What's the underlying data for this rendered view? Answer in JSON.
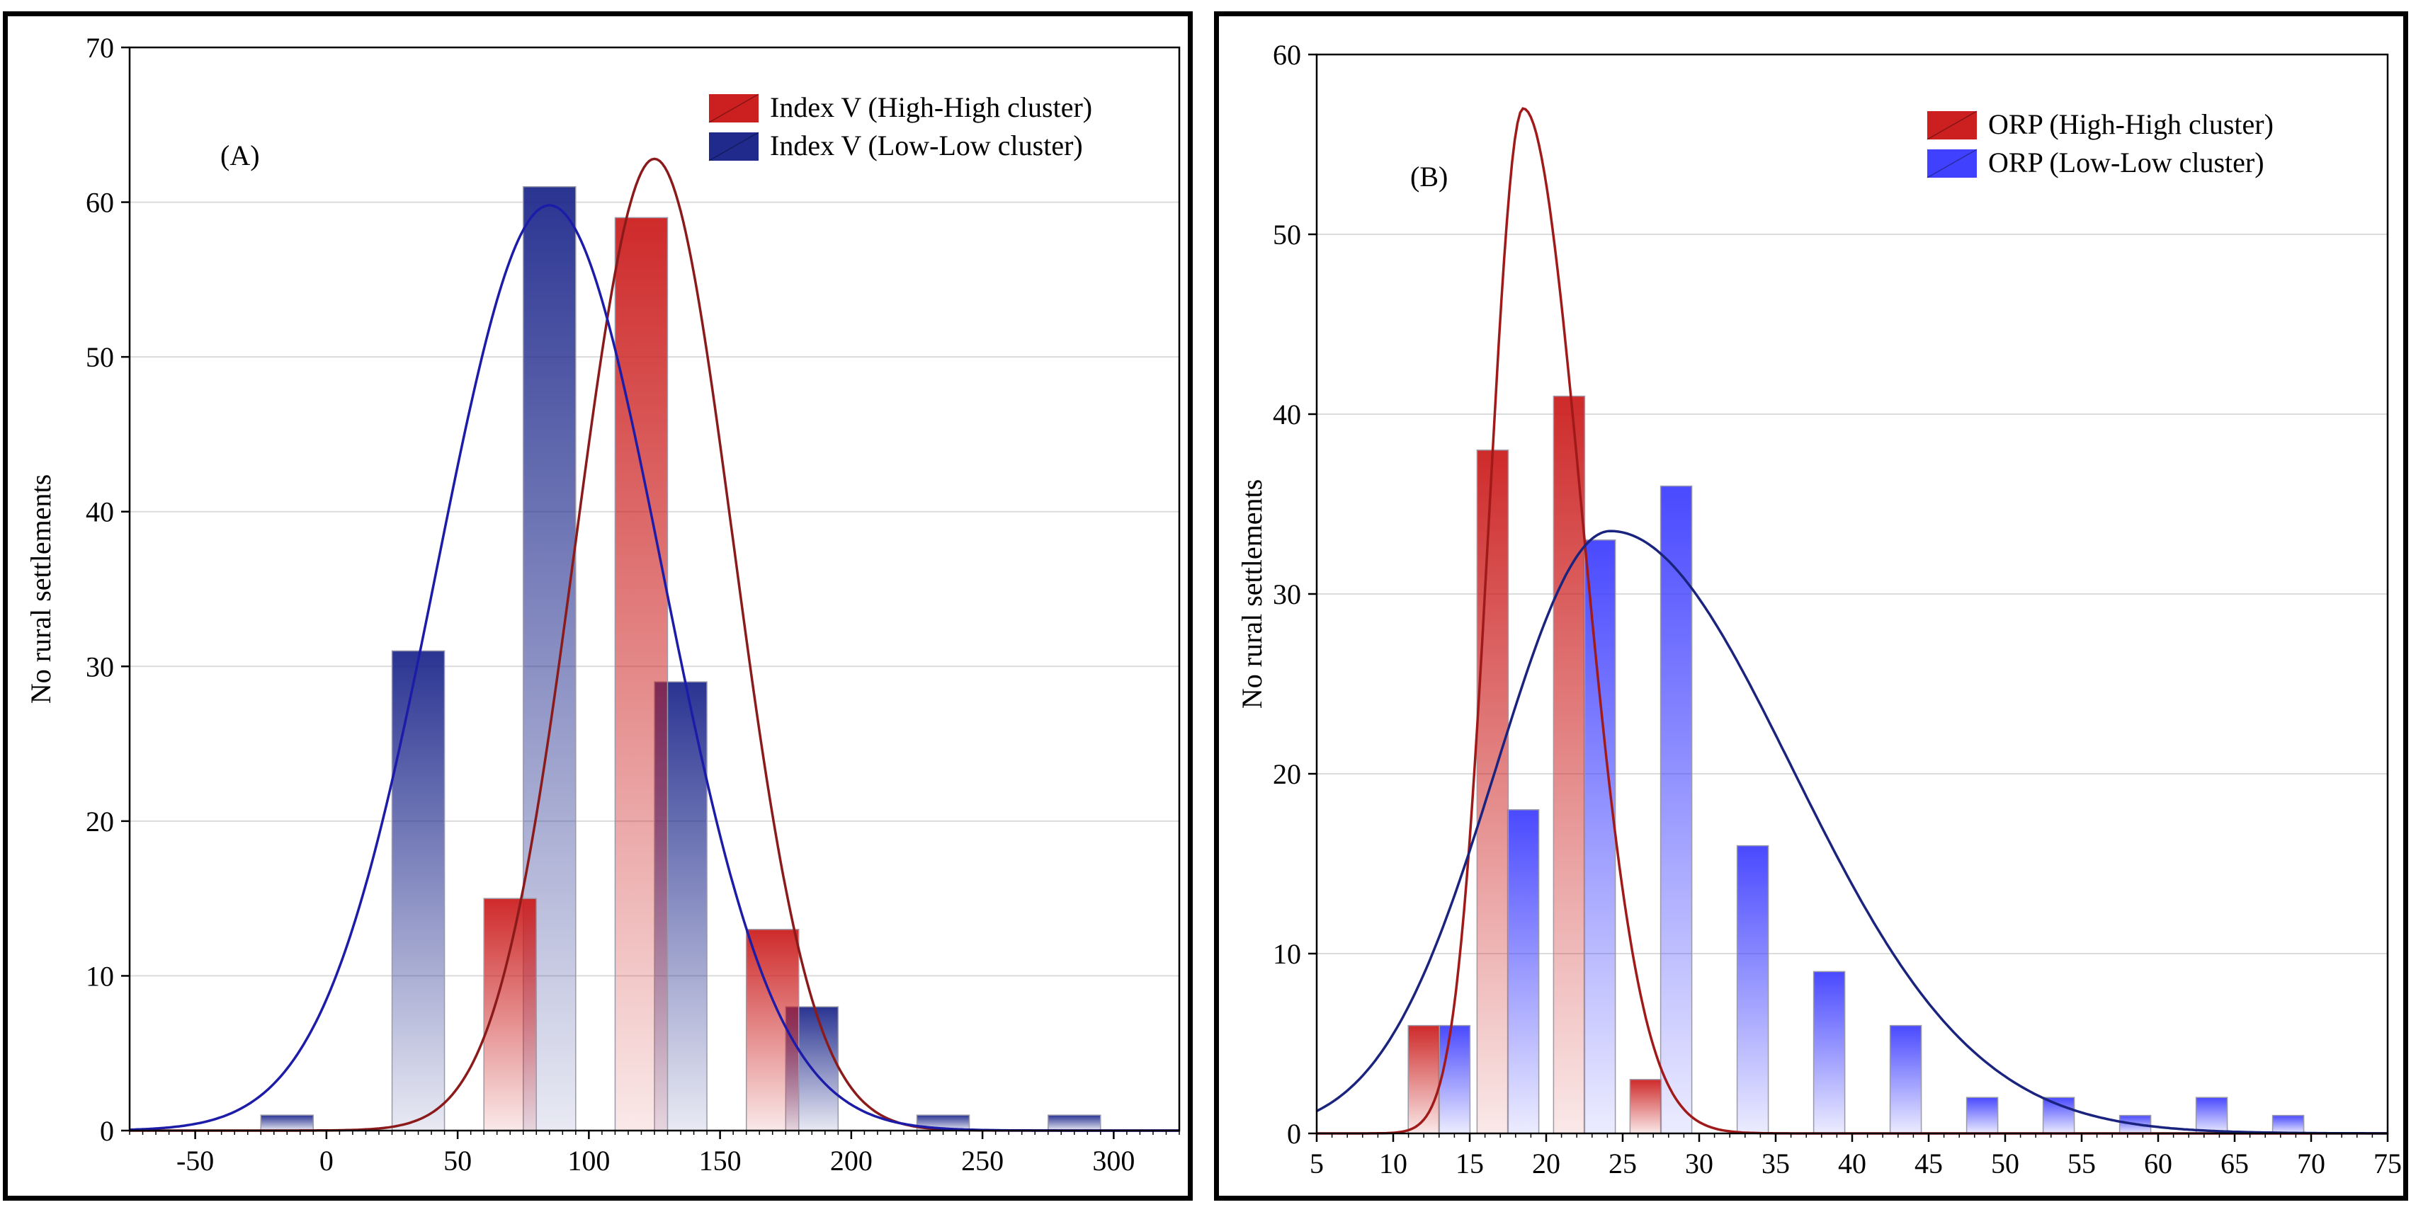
{
  "chart_data": [
    {
      "type": "bar",
      "panel_label": "(A)",
      "ylabel": "No rural settlements",
      "xlabel": "",
      "xlim": [
        -75,
        325
      ],
      "ylim": [
        0,
        70
      ],
      "x_ticks": [
        -50,
        0,
        50,
        100,
        150,
        200,
        250,
        300
      ],
      "y_ticks": [
        0,
        10,
        20,
        30,
        40,
        50,
        60,
        70
      ],
      "grid": "horizontal",
      "legend_position": "top-right",
      "bin_width": 20,
      "series": [
        {
          "name": "Index V (High-High cluster)",
          "color": "#cc1f1f",
          "bins": [
            {
              "x": 70,
              "value": 15
            },
            {
              "x": 120,
              "value": 59
            },
            {
              "x": 170,
              "value": 13
            }
          ],
          "fit_curve": {
            "mean": 125,
            "sd": 30,
            "peak": 62.8,
            "color": "#8b1a1a"
          }
        },
        {
          "name": "Index V (Low-Low cluster)",
          "color": "#1f2a8c",
          "bins": [
            {
              "x": -15,
              "value": 1
            },
            {
              "x": 35,
              "value": 31
            },
            {
              "x": 85,
              "value": 61
            },
            {
              "x": 135,
              "value": 29
            },
            {
              "x": 185,
              "value": 8
            },
            {
              "x": 235,
              "value": 1
            },
            {
              "x": 285,
              "value": 1
            }
          ],
          "fit_curve": {
            "mean": 85,
            "sd": 43,
            "peak": 59.8,
            "color": "#1c1ca8"
          }
        }
      ]
    },
    {
      "type": "bar",
      "panel_label": "(B)",
      "ylabel": "No rural settlements",
      "xlabel": "",
      "xlim": [
        5,
        75
      ],
      "ylim": [
        0,
        60
      ],
      "x_ticks": [
        5,
        10,
        15,
        20,
        25,
        30,
        35,
        40,
        45,
        50,
        55,
        60,
        65,
        70,
        75
      ],
      "y_ticks": [
        0,
        10,
        20,
        30,
        40,
        50,
        60
      ],
      "grid": "horizontal",
      "legend_position": "top-right",
      "bin_width": 2,
      "series": [
        {
          "name": "ORP (High-High cluster)",
          "color": "#cc1f1f",
          "bins": [
            {
              "x": 12,
              "value": 6
            },
            {
              "x": 16.5,
              "value": 38
            },
            {
              "x": 21.5,
              "value": 41
            },
            {
              "x": 26.5,
              "value": 3
            }
          ],
          "fit_curve": {
            "mean": 18.5,
            "sd": 2.7,
            "peak": 57,
            "skew": 1.2,
            "color": "#a11a1a"
          }
        },
        {
          "name": "ORP (Low-Low cluster)",
          "color": "#4040ff",
          "bins": [
            {
              "x": 14,
              "value": 6
            },
            {
              "x": 18.5,
              "value": 18
            },
            {
              "x": 23.5,
              "value": 33
            },
            {
              "x": 28.5,
              "value": 36
            },
            {
              "x": 33.5,
              "value": 16
            },
            {
              "x": 38.5,
              "value": 9
            },
            {
              "x": 43.5,
              "value": 6
            },
            {
              "x": 48.5,
              "value": 2
            },
            {
              "x": 53.5,
              "value": 2
            },
            {
              "x": 58.5,
              "value": 1
            },
            {
              "x": 63.5,
              "value": 2
            },
            {
              "x": 68.5,
              "value": 1
            }
          ],
          "fit_curve": {
            "mean": 24.2,
            "sd": 8.8,
            "peak": 33.5,
            "skew": 1.0,
            "color": "#1a237e"
          }
        }
      ]
    }
  ]
}
